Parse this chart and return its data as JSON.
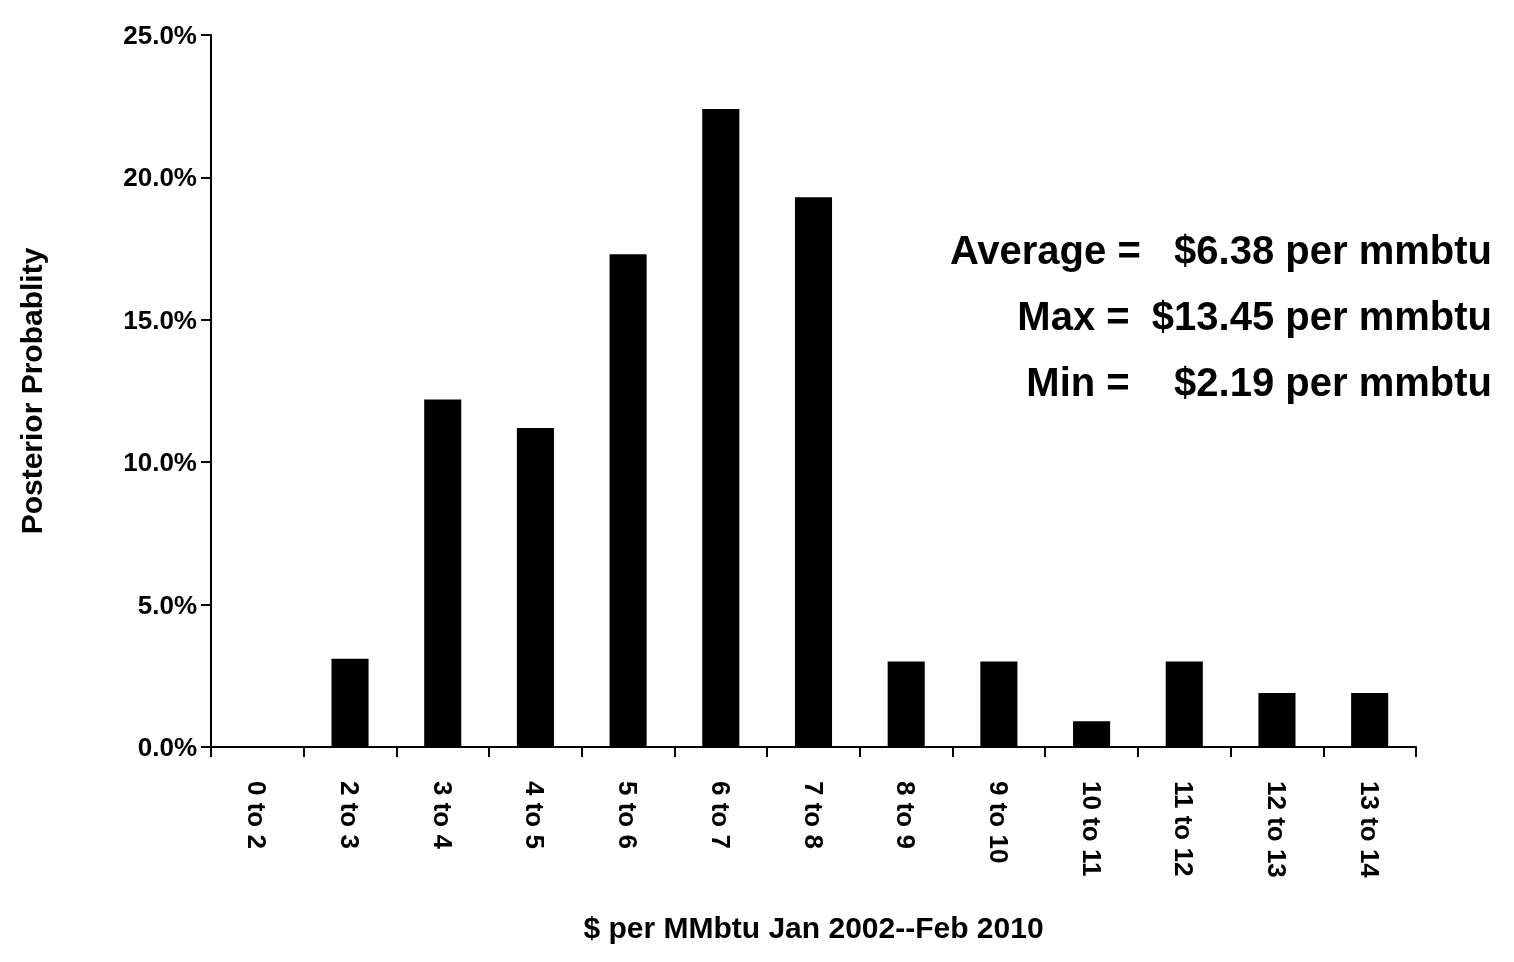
{
  "chart_data": {
    "type": "bar",
    "categories": [
      "0 to 2",
      "2 to 3",
      "3 to 4",
      "4 to 5",
      "5 to 6",
      "6 to 7",
      "7 to 8",
      "8 to 9",
      "9 to 10",
      "10 to 11",
      "11 to 12",
      "12 to 13",
      "13 to 14"
    ],
    "values": [
      0,
      3.1,
      12.2,
      11.2,
      17.3,
      22.4,
      19.3,
      3.0,
      3.0,
      0.9,
      3.0,
      1.9,
      1.9
    ],
    "color": "#000000",
    "xlabel": "$ per MMbtu Jan 2002--Feb 2010",
    "ylabel": "Posterior Probablity",
    "ylim": [
      0,
      25
    ],
    "yticks": [
      {
        "value": 0,
        "label": "0.0%"
      },
      {
        "value": 5,
        "label": "5.0%"
      },
      {
        "value": 10,
        "label": "10.0%"
      },
      {
        "value": 15,
        "label": "15.0%"
      },
      {
        "value": 20,
        "label": "20.0%"
      },
      {
        "value": 25,
        "label": "25.0%"
      }
    ],
    "annotations": [
      "Average =   $6.38 per mmbtu",
      "Max =  $13.45 per mmbtu",
      "Min =    $2.19 per mmbtu"
    ],
    "grid": false
  }
}
